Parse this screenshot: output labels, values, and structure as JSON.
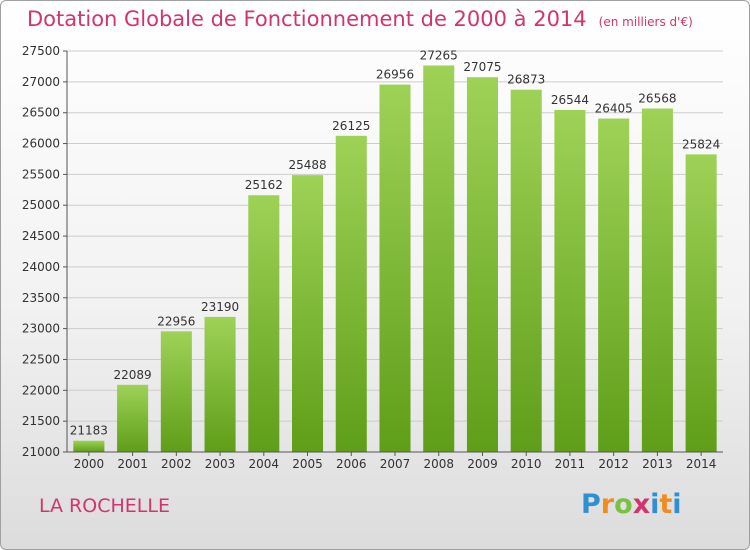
{
  "title": "Dotation Globale de Fonctionnement de 2000 à 2014",
  "unit": "(en milliers d'€)",
  "commune": "LA ROCHELLE",
  "logo": {
    "text": "Proxiti"
  },
  "colors": {
    "title": "#d2346e",
    "bar_light": "#9ed257",
    "bar_dark": "#5f9e18",
    "grid": "#cccccc",
    "axis_text": "#333333"
  },
  "chart_data": {
    "type": "bar",
    "categories": [
      "2000",
      "2001",
      "2002",
      "2003",
      "2004",
      "2005",
      "2006",
      "2007",
      "2008",
      "2009",
      "2010",
      "2011",
      "2012",
      "2013",
      "2014"
    ],
    "values": [
      21183,
      22089,
      22956,
      23190,
      25162,
      25488,
      26125,
      26956,
      27265,
      27075,
      26873,
      26544,
      26405,
      26568,
      25824
    ],
    "ylim": [
      21000,
      27500
    ],
    "yticks": [
      21000,
      21500,
      22000,
      22500,
      23000,
      23500,
      24000,
      24500,
      25000,
      25500,
      26000,
      26500,
      27000,
      27500
    ],
    "grid": true,
    "data_labels": true
  }
}
